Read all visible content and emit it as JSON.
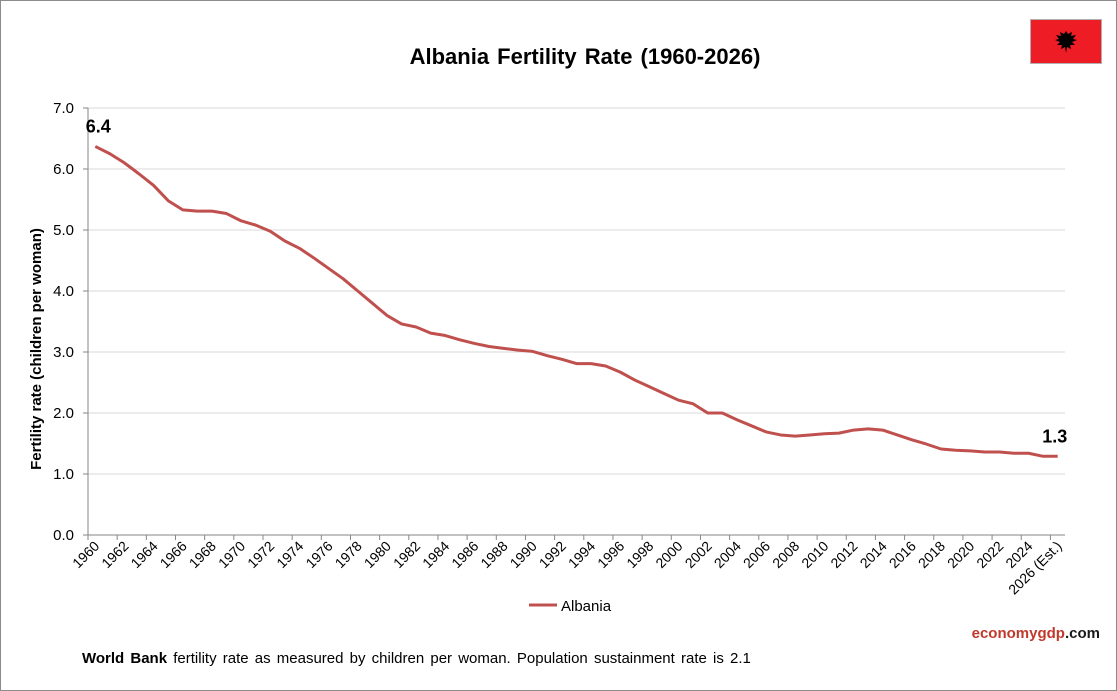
{
  "chart_data": {
    "type": "line",
    "title": "Albania Fertility Rate (1960-2026)",
    "xlabel": "",
    "ylabel": "Fertility rate (children per woman)",
    "ylim": [
      0,
      7
    ],
    "yticks": [
      "0.0",
      "1.0",
      "2.0",
      "3.0",
      "4.0",
      "5.0",
      "6.0",
      "7.0"
    ],
    "grid": true,
    "legend_position": "bottom-center",
    "categories": [
      "1960",
      "1961",
      "1962",
      "1963",
      "1964",
      "1965",
      "1966",
      "1967",
      "1968",
      "1969",
      "1970",
      "1971",
      "1972",
      "1973",
      "1974",
      "1975",
      "1976",
      "1977",
      "1978",
      "1979",
      "1980",
      "1981",
      "1982",
      "1983",
      "1984",
      "1985",
      "1986",
      "1987",
      "1988",
      "1989",
      "1990",
      "1991",
      "1992",
      "1993",
      "1994",
      "1995",
      "1996",
      "1997",
      "1998",
      "1999",
      "2000",
      "2001",
      "2002",
      "2003",
      "2004",
      "2005",
      "2006",
      "2007",
      "2008",
      "2009",
      "2010",
      "2011",
      "2012",
      "2013",
      "2014",
      "2015",
      "2016",
      "2017",
      "2018",
      "2019",
      "2020",
      "2021",
      "2022",
      "2023",
      "2024",
      "2025",
      "2026 (Est.)"
    ],
    "x_tick_labels": [
      "1960",
      "1962",
      "1964",
      "1966",
      "1968",
      "1970",
      "1972",
      "1974",
      "1976",
      "1978",
      "1980",
      "1982",
      "1984",
      "1986",
      "1988",
      "1990",
      "1992",
      "1994",
      "1996",
      "1998",
      "2000",
      "2002",
      "2004",
      "2006",
      "2008",
      "2010",
      "2012",
      "2014",
      "2016",
      "2018",
      "2020",
      "2022",
      "2024",
      "2026 (Est.)"
    ],
    "series": [
      {
        "name": "Albania",
        "color": "#c0504d",
        "values": [
          6.37,
          6.25,
          6.1,
          5.92,
          5.73,
          5.48,
          5.33,
          5.31,
          5.31,
          5.27,
          5.15,
          5.08,
          4.98,
          4.82,
          4.7,
          4.54,
          4.37,
          4.2,
          4.0,
          3.8,
          3.6,
          3.46,
          3.41,
          3.31,
          3.27,
          3.2,
          3.14,
          3.09,
          3.06,
          3.03,
          3.01,
          2.94,
          2.88,
          2.81,
          2.81,
          2.77,
          2.67,
          2.54,
          2.43,
          2.32,
          2.21,
          2.15,
          2.0,
          2.0,
          1.89,
          1.79,
          1.69,
          1.64,
          1.62,
          1.64,
          1.66,
          1.67,
          1.72,
          1.74,
          1.72,
          1.64,
          1.56,
          1.49,
          1.41,
          1.39,
          1.38,
          1.36,
          1.36,
          1.34,
          1.34,
          1.29,
          1.29
        ]
      }
    ],
    "annotations": [
      {
        "label": "6.4",
        "at_category": "1960"
      },
      {
        "label": "1.3",
        "at_category": "2026 (Est.)"
      }
    ]
  },
  "brand": {
    "part1": "economy",
    "part2": "gdp",
    "part3": ".com"
  },
  "source": {
    "bold": "World Bank",
    "text": " fertility rate as measured by children per woman.  Population sustainment rate is 2.1"
  },
  "flag_icon": "albania-flag-icon"
}
